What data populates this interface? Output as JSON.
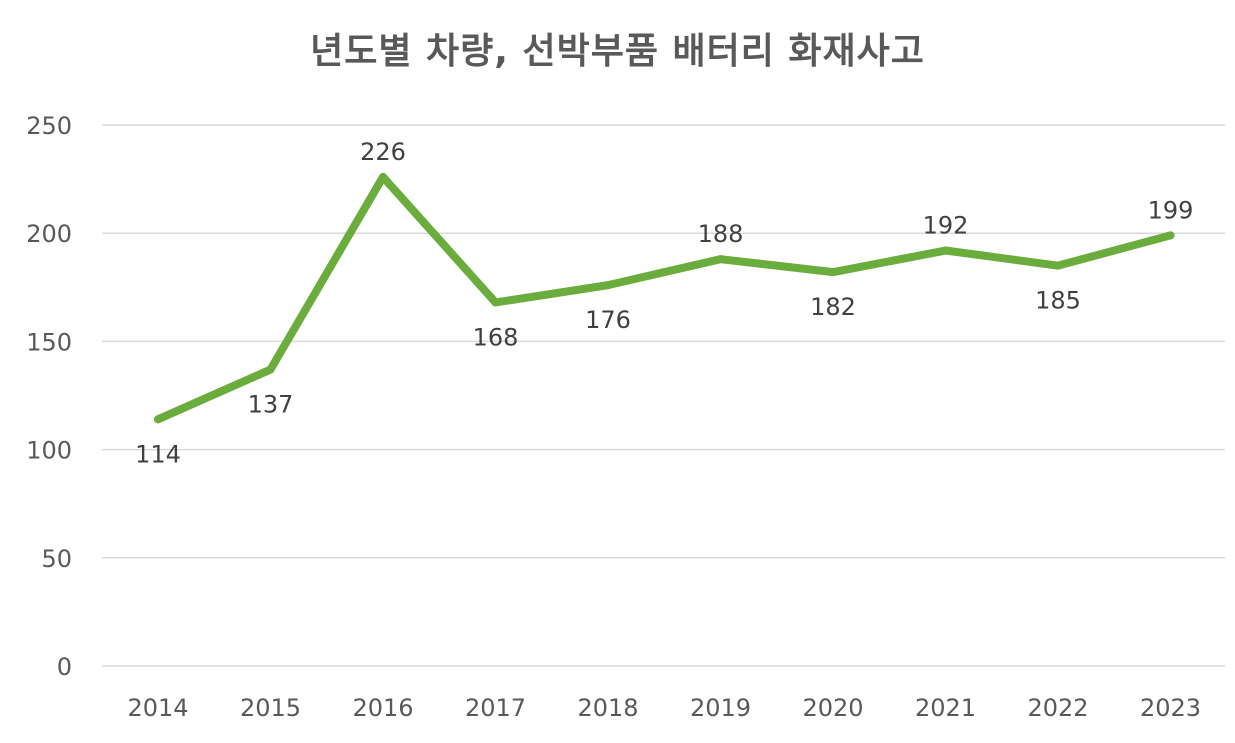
{
  "chart_data": {
    "type": "line",
    "title": "년도별 차량, 선박부품 배터리 화재사고",
    "categories": [
      "2014",
      "2015",
      "2016",
      "2017",
      "2018",
      "2019",
      "2020",
      "2021",
      "2022",
      "2023"
    ],
    "series": [
      {
        "values": [
          114,
          137,
          226,
          168,
          176,
          188,
          182,
          192,
          185,
          199
        ],
        "color": "#6aad3d",
        "data_labels": [
          "114",
          "137",
          "226",
          "168",
          "176",
          "188",
          "182",
          "192",
          "185",
          "199"
        ]
      }
    ],
    "ylim": [
      0,
      250
    ],
    "y_ticks": [
      "0",
      "50",
      "100",
      "150",
      "200",
      "250"
    ],
    "grid": true,
    "legend": "none"
  }
}
